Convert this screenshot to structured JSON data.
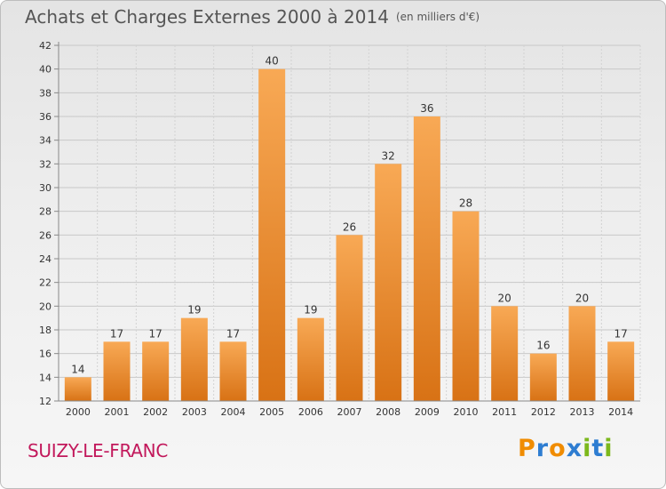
{
  "header": {
    "title": "Achats et Charges Externes 2000 à 2014",
    "unit": "(en milliers d'€)"
  },
  "footer": {
    "commune": "SUIZY-LE-FRANC",
    "brand": "Proxiti"
  },
  "colors": {
    "bar_light": "#f8a955",
    "bar_dark": "#d87215",
    "commune": "#c2185b",
    "brand_letters": [
      "#f08c00",
      "#2e7dd1",
      "#f08c00",
      "#2e7dd1",
      "#7cb81c",
      "#2e7dd1",
      "#7cb81c"
    ]
  },
  "chart_data": {
    "type": "bar",
    "title": "Achats et Charges Externes 2000 à 2014",
    "categories": [
      "2000",
      "2001",
      "2002",
      "2003",
      "2004",
      "2005",
      "2006",
      "2007",
      "2008",
      "2009",
      "2010",
      "2011",
      "2012",
      "2013",
      "2014"
    ],
    "values": [
      14,
      17,
      17,
      19,
      17,
      40,
      19,
      26,
      32,
      36,
      28,
      20,
      16,
      20,
      17
    ],
    "ylim": [
      12,
      42
    ],
    "yticks": [
      12,
      14,
      16,
      18,
      20,
      22,
      24,
      26,
      28,
      30,
      32,
      34,
      36,
      38,
      40,
      42
    ],
    "grid": true,
    "xlabel": "",
    "ylabel": ""
  }
}
